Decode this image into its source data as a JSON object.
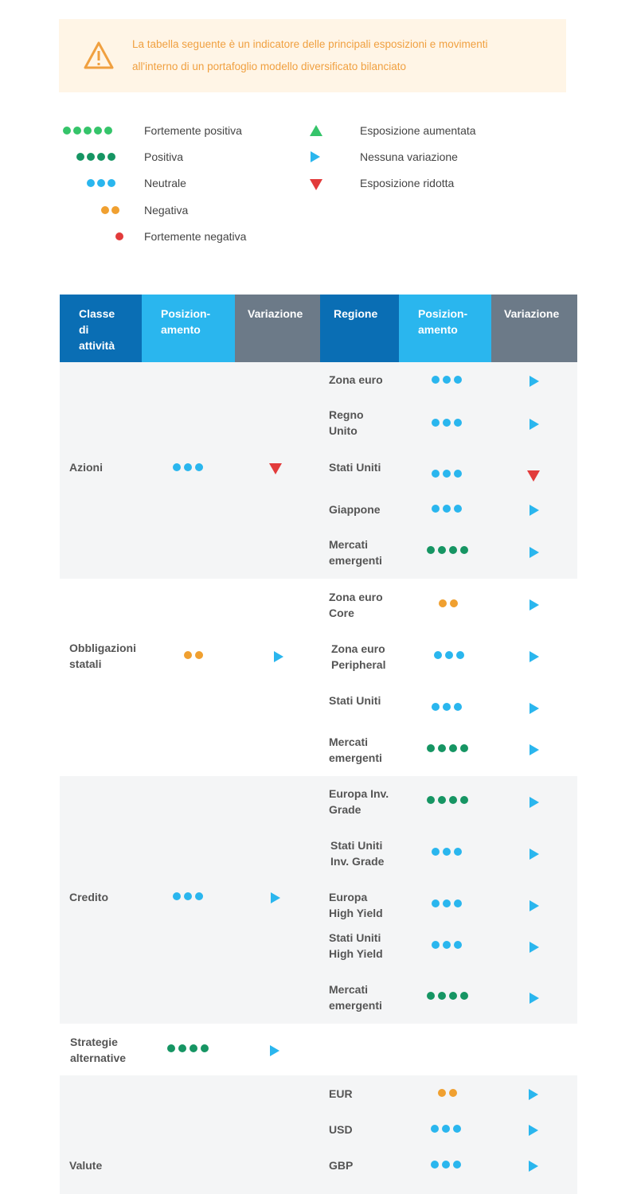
{
  "notice": {
    "icon": "warning-icon",
    "text_line1": "La tabella seguente è un indicatore delle principali esposizioni e movimenti",
    "text_line2": "all'interno di un portafoglio modello diversificato bilanciato"
  },
  "legend": {
    "levels": [
      {
        "label": "Fortemente positiva",
        "count": 5,
        "color": "#35c46a"
      },
      {
        "label": "Positiva",
        "count": 4,
        "color": "#169563"
      },
      {
        "label": "Neutrale",
        "count": 3,
        "color": "#2ab6ee"
      },
      {
        "label": "Negativa",
        "count": 2,
        "color": "#f0a030"
      },
      {
        "label": "Fortemente negativa",
        "count": 1,
        "color": "#e23b3b"
      }
    ],
    "changes": [
      {
        "label": "Esposizione aumentata",
        "icon": "triangle-up-icon"
      },
      {
        "label": "Nessuna variazione",
        "icon": "triangle-right-icon"
      },
      {
        "label": "Esposizione ridotta",
        "icon": "triangle-down-icon"
      }
    ]
  },
  "table": {
    "headers": {
      "asset_class_1": "Classe",
      "asset_class_2": "di",
      "asset_class_3": "attività",
      "positioning_1": "Posizion-",
      "positioning_2": "amento",
      "change": "Variazione",
      "region": "Regione",
      "positioning2_1": "Posizion-",
      "positioning2_2": "amento",
      "change2": "Variazione"
    },
    "groups": [
      {
        "name_1": "Azioni",
        "name_2": "",
        "positioning": 3,
        "change": "down",
        "rows": [
          {
            "l1": "Zona euro",
            "l2": "",
            "positioning": 3,
            "change": "right"
          },
          {
            "l1": "Regno",
            "l2": "Unito",
            "positioning": 3,
            "change": "right"
          },
          {
            "l1": "Stati Uniti",
            "l2": "",
            "positioning": 3,
            "change": "down"
          },
          {
            "l1": "Giappone",
            "l2": "",
            "positioning": 3,
            "change": "right"
          },
          {
            "l1": "Mercati",
            "l2": "emergenti",
            "positioning": 4,
            "change": "right"
          }
        ]
      },
      {
        "name_1": "Obbligazioni",
        "name_2": "statali",
        "positioning": 2,
        "change": "right",
        "rows": [
          {
            "l1": "Zona euro",
            "l2": "Core",
            "positioning": 2,
            "change": "right"
          },
          {
            "l1": "Zona euro",
            "l2": "Peripheral",
            "positioning": 3,
            "change": "right"
          },
          {
            "l1": "Stati Uniti",
            "l2": "",
            "positioning": 3,
            "change": "right"
          },
          {
            "l1": "Mercati",
            "l2": "emergenti",
            "positioning": 4,
            "change": "right"
          }
        ]
      },
      {
        "name_1": "Credito",
        "name_2": "",
        "positioning": 3,
        "change": "right",
        "rows": [
          {
            "l1": "Europa Inv.",
            "l2": "Grade",
            "positioning": 4,
            "change": "right"
          },
          {
            "l1": "Stati Uniti",
            "l2": "Inv. Grade",
            "positioning": 3,
            "change": "right"
          },
          {
            "l1": "Europa",
            "l2": "High Yield",
            "positioning": 3,
            "change": "right"
          },
          {
            "l1": "Stati Uniti",
            "l2": "High Yield",
            "positioning": 3,
            "change": "right"
          },
          {
            "l1": "Mercati",
            "l2": "emergenti",
            "positioning": 4,
            "change": "right"
          }
        ]
      },
      {
        "name_1": "Strategie",
        "name_2": "alternative",
        "positioning": 4,
        "change": "right",
        "rows": []
      },
      {
        "name_1": "Valute",
        "name_2": "",
        "positioning": 0,
        "change": "",
        "rows": [
          {
            "l1": "EUR",
            "l2": "",
            "positioning": 2,
            "change": "right"
          },
          {
            "l1": "USD",
            "l2": "",
            "positioning": 3,
            "change": "right"
          },
          {
            "l1": "GBP",
            "l2": "",
            "positioning": 3,
            "change": "right"
          }
        ]
      }
    ]
  }
}
